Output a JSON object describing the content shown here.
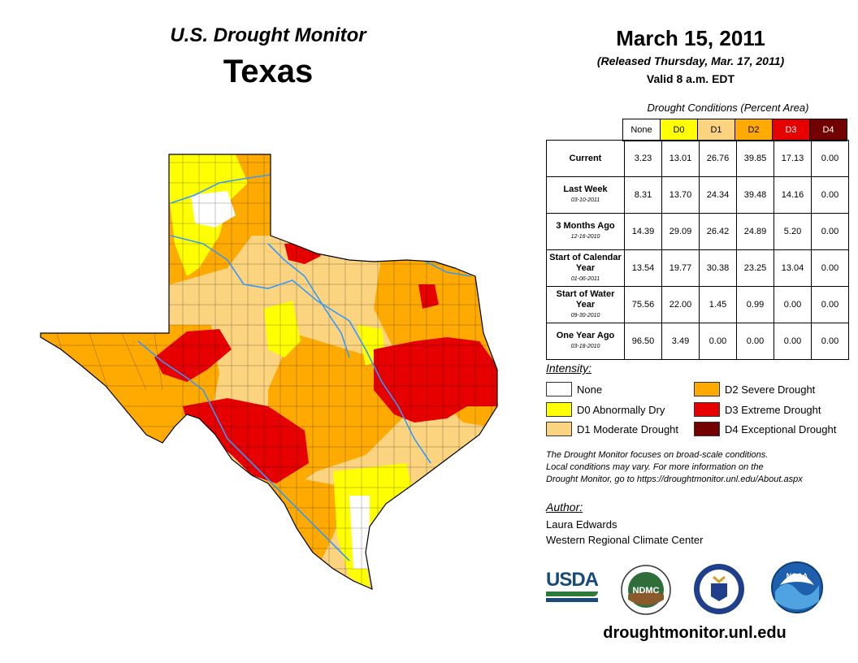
{
  "header": {
    "monitor_title": "U.S. Drought Monitor",
    "state": "Texas",
    "date": "March 15, 2011",
    "released": "(Released Thursday, Mar. 17, 2011)",
    "valid": "Valid 8 a.m. EDT"
  },
  "table": {
    "title": "Drought Conditions (Percent Area)",
    "columns": [
      "None",
      "D0",
      "D1",
      "D2",
      "D3",
      "D4"
    ],
    "rows": [
      {
        "label": "Current",
        "date": "",
        "values": [
          "3.23",
          "13.01",
          "26.76",
          "39.85",
          "17.13",
          "0.00"
        ]
      },
      {
        "label": "Last Week",
        "date": "03-10-2011",
        "values": [
          "8.31",
          "13.70",
          "24.34",
          "39.48",
          "14.16",
          "0.00"
        ]
      },
      {
        "label": "3 Months Ago",
        "date": "12-16-2010",
        "values": [
          "14.39",
          "29.09",
          "26.42",
          "24.89",
          "5.20",
          "0.00"
        ]
      },
      {
        "label": "Start of Calendar Year",
        "date": "01-06-2011",
        "values": [
          "13.54",
          "19.77",
          "30.38",
          "23.25",
          "13.04",
          "0.00"
        ]
      },
      {
        "label": "Start of Water Year",
        "date": "09-30-2010",
        "values": [
          "75.56",
          "22.00",
          "1.45",
          "0.99",
          "0.00",
          "0.00"
        ]
      },
      {
        "label": "One Year Ago",
        "date": "03-18-2010",
        "values": [
          "96.50",
          "3.49",
          "0.00",
          "0.00",
          "0.00",
          "0.00"
        ]
      }
    ]
  },
  "legend": {
    "title": "Intensity:",
    "items": [
      {
        "label": "None",
        "color": "#ffffff"
      },
      {
        "label": "D0 Abnormally Dry",
        "color": "#ffff00"
      },
      {
        "label": "D1 Moderate Drought",
        "color": "#fcd37f"
      },
      {
        "label": "D2 Severe Drought",
        "color": "#ffaa00"
      },
      {
        "label": "D3 Extreme Drought",
        "color": "#e60000"
      },
      {
        "label": "D4 Exceptional Drought",
        "color": "#730000"
      }
    ]
  },
  "note": {
    "line1": "The Drought Monitor focuses on broad-scale conditions.",
    "line2": "Local conditions may vary. For more information on the",
    "line3": "Drought Monitor, go to https://droughtmonitor.unl.edu/About.aspx"
  },
  "author": {
    "title": "Author:",
    "name": "Laura Edwards",
    "org": "Western Regional Climate Center"
  },
  "logos": {
    "usda": "USDA",
    "ndmc": "NDMC",
    "noaa": "NOAA"
  },
  "footer": {
    "url": "droughtmonitor.unl.edu"
  },
  "colors": {
    "none": "#ffffff",
    "d0": "#ffff00",
    "d1": "#fcd37f",
    "d2": "#ffaa00",
    "d3": "#e60000",
    "d4": "#730000",
    "river": "#3399ff"
  }
}
